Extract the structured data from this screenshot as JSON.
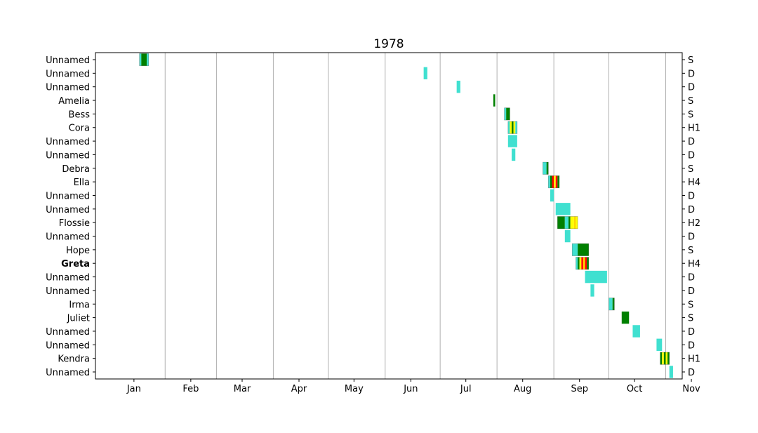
{
  "chart_data": {
    "type": "timeline",
    "title": "1978",
    "months": [
      "Jan",
      "Feb",
      "Mar",
      "Apr",
      "May",
      "Jun",
      "Jul",
      "Aug",
      "Sep",
      "Oct",
      "Nov"
    ],
    "colors": {
      "D": "#40e0d0",
      "S": "#008000",
      "H1": "#ffff00",
      "H2": "#ffd700",
      "H3": "#ffa500",
      "H4": "#ff0000",
      "outline": "#000000"
    },
    "storms": [
      {
        "name": "Unnamed",
        "category": "S",
        "bold": false,
        "segments": [
          [
            "1978-01-18",
            "1978-01-19",
            "D"
          ],
          [
            "1978-01-19",
            "1978-01-22",
            "S"
          ],
          [
            "1978-01-22",
            "1978-01-23",
            "D"
          ]
        ]
      },
      {
        "name": "Unnamed",
        "category": "D",
        "bold": false,
        "segments": [
          [
            "1978-06-22",
            "1978-06-24",
            "D"
          ]
        ]
      },
      {
        "name": "Unnamed",
        "category": "D",
        "bold": false,
        "segments": [
          [
            "1978-07-10",
            "1978-07-12",
            "D"
          ]
        ]
      },
      {
        "name": "Amelia",
        "category": "S",
        "bold": false,
        "segments": [
          [
            "1978-07-30",
            "1978-07-31",
            "S"
          ]
        ]
      },
      {
        "name": "Bess",
        "category": "S",
        "bold": false,
        "segments": [
          [
            "1978-08-05",
            "1978-08-06",
            "D"
          ],
          [
            "1978-08-06",
            "1978-08-08",
            "S"
          ]
        ]
      },
      {
        "name": "Cora",
        "category": "H1",
        "bold": false,
        "segments": [
          [
            "1978-08-07",
            "1978-08-08",
            "D"
          ],
          [
            "1978-08-08",
            "1978-08-09",
            "H1"
          ],
          [
            "1978-08-09",
            "1978-08-10",
            "S"
          ],
          [
            "1978-08-10",
            "1978-08-11",
            "H1"
          ],
          [
            "1978-08-11",
            "1978-08-12",
            "D"
          ]
        ]
      },
      {
        "name": "Unnamed",
        "category": "D",
        "bold": false,
        "segments": [
          [
            "1978-08-07",
            "1978-08-12",
            "D"
          ]
        ]
      },
      {
        "name": "Unnamed",
        "category": "D",
        "bold": false,
        "segments": [
          [
            "1978-08-09",
            "1978-08-11",
            "D"
          ]
        ]
      },
      {
        "name": "Debra",
        "category": "S",
        "bold": false,
        "segments": [
          [
            "1978-08-26",
            "1978-08-28",
            "D"
          ],
          [
            "1978-08-28",
            "1978-08-29",
            "S"
          ]
        ]
      },
      {
        "name": "Ella",
        "category": "H4",
        "bold": false,
        "segments": [
          [
            "1978-08-29",
            "1978-08-30",
            "D"
          ],
          [
            "1978-08-30",
            "1978-08-31",
            "S"
          ],
          [
            "1978-08-31",
            "1978-09-01",
            "H4"
          ],
          [
            "1978-09-01",
            "1978-09-02",
            "H1"
          ],
          [
            "1978-09-02",
            "1978-09-03",
            "H4"
          ],
          [
            "1978-09-03",
            "1978-09-04",
            "S"
          ]
        ]
      },
      {
        "name": "Unnamed",
        "category": "D",
        "bold": false,
        "segments": [
          [
            "1978-08-30",
            "1978-09-01",
            "D"
          ]
        ]
      },
      {
        "name": "Unnamed",
        "category": "D",
        "bold": false,
        "segments": [
          [
            "1978-09-02",
            "1978-09-10",
            "D"
          ]
        ]
      },
      {
        "name": "Flossie",
        "category": "H2",
        "bold": false,
        "segments": [
          [
            "1978-09-03",
            "1978-09-07",
            "S"
          ],
          [
            "1978-09-07",
            "1978-09-09",
            "D"
          ],
          [
            "1978-09-09",
            "1978-09-10",
            "S"
          ],
          [
            "1978-09-10",
            "1978-09-12",
            "H1"
          ],
          [
            "1978-09-12",
            "1978-09-13",
            "H2"
          ],
          [
            "1978-09-13",
            "1978-09-14",
            "H1"
          ]
        ]
      },
      {
        "name": "Unnamed",
        "category": "D",
        "bold": false,
        "segments": [
          [
            "1978-09-07",
            "1978-09-10",
            "D"
          ]
        ]
      },
      {
        "name": "Hope",
        "category": "S",
        "bold": false,
        "segments": [
          [
            "1978-09-11",
            "1978-09-14",
            "D"
          ],
          [
            "1978-09-14",
            "1978-09-20",
            "S"
          ]
        ]
      },
      {
        "name": "Greta",
        "category": "H4",
        "bold": true,
        "segments": [
          [
            "1978-09-13",
            "1978-09-14",
            "D"
          ],
          [
            "1978-09-14",
            "1978-09-15",
            "S"
          ],
          [
            "1978-09-15",
            "1978-09-16",
            "H1"
          ],
          [
            "1978-09-16",
            "1978-09-17",
            "H4"
          ],
          [
            "1978-09-17",
            "1978-09-18",
            "H2"
          ],
          [
            "1978-09-18",
            "1978-09-19",
            "H4"
          ],
          [
            "1978-09-19",
            "1978-09-20",
            "S"
          ]
        ]
      },
      {
        "name": "Unnamed",
        "category": "D",
        "bold": false,
        "segments": [
          [
            "1978-09-18",
            "1978-09-30",
            "D"
          ]
        ]
      },
      {
        "name": "Unnamed",
        "category": "D",
        "bold": false,
        "segments": [
          [
            "1978-09-21",
            "1978-09-23",
            "D"
          ]
        ]
      },
      {
        "name": "Irma",
        "category": "S",
        "bold": false,
        "segments": [
          [
            "1978-10-01",
            "1978-10-03",
            "D"
          ],
          [
            "1978-10-03",
            "1978-10-04",
            "S"
          ]
        ]
      },
      {
        "name": "Juliet",
        "category": "S",
        "bold": false,
        "segments": [
          [
            "1978-10-08",
            "1978-10-12",
            "S"
          ]
        ]
      },
      {
        "name": "Unnamed",
        "category": "D",
        "bold": false,
        "segments": [
          [
            "1978-10-14",
            "1978-10-18",
            "D"
          ]
        ]
      },
      {
        "name": "Unnamed",
        "category": "D",
        "bold": false,
        "segments": [
          [
            "1978-10-27",
            "1978-10-30",
            "D"
          ]
        ]
      },
      {
        "name": "Kendra",
        "category": "H1",
        "bold": false,
        "segments": [
          [
            "1978-10-29",
            "1978-10-30",
            "S"
          ],
          [
            "1978-10-30",
            "1978-10-31",
            "H1"
          ],
          [
            "1978-10-31",
            "1978-11-01",
            "S"
          ],
          [
            "1978-11-01",
            "1978-11-02",
            "H1"
          ],
          [
            "1978-11-02",
            "1978-11-03",
            "S"
          ]
        ]
      },
      {
        "name": "Unnamed",
        "category": "D",
        "bold": false,
        "segments": [
          [
            "1978-11-03",
            "1978-11-05",
            "D"
          ]
        ]
      }
    ]
  }
}
